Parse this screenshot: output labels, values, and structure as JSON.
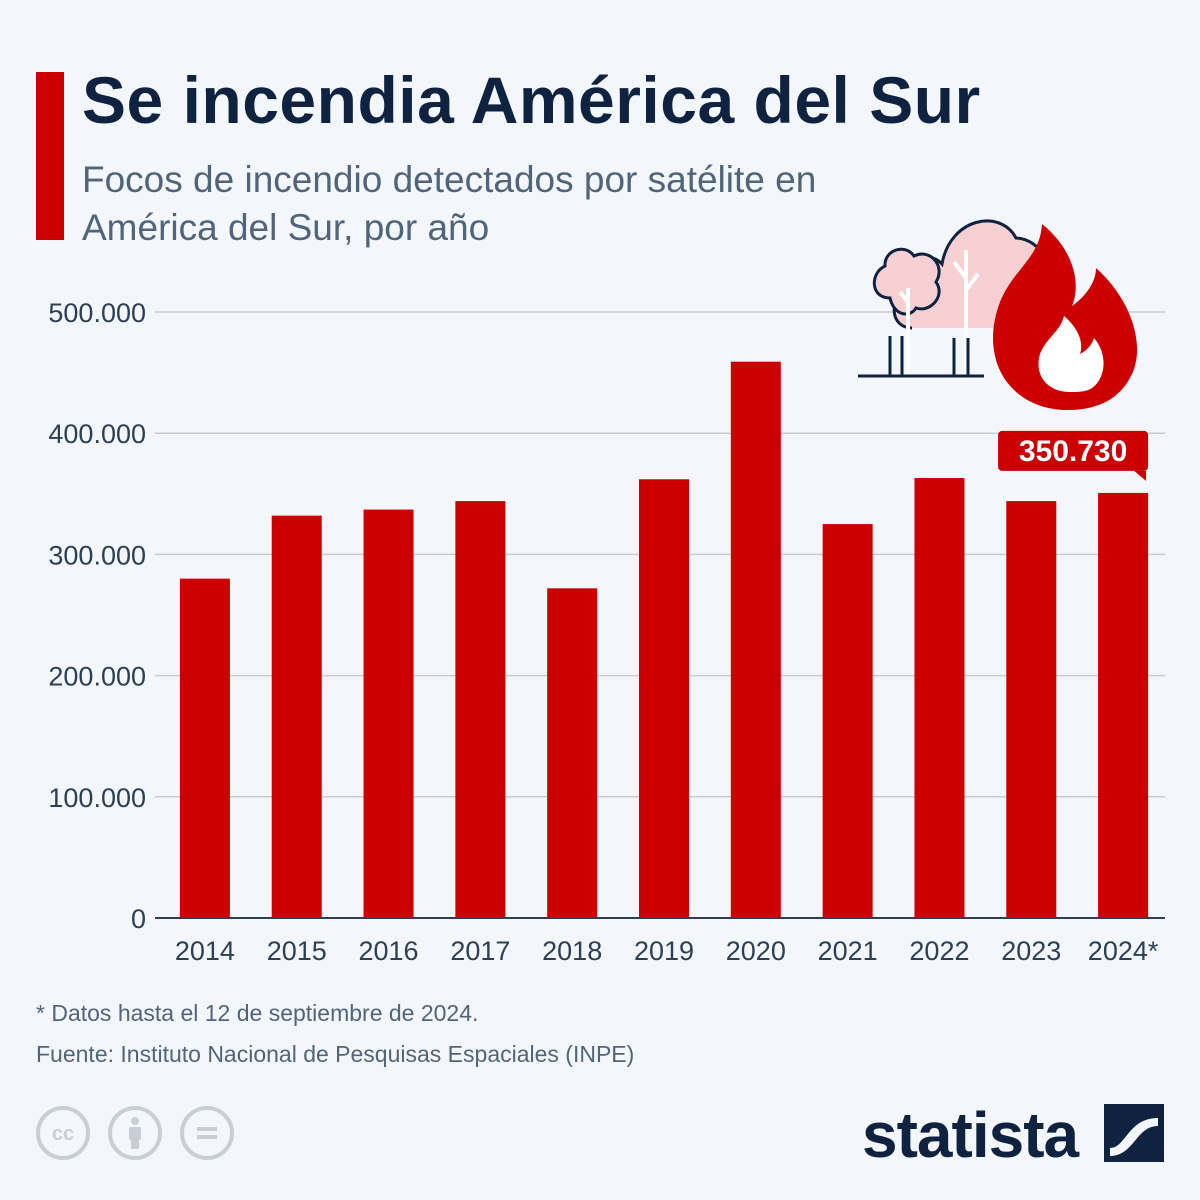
{
  "header": {
    "title": "Se incendia América del Sur",
    "subtitle": "Focos de incendio detectados por satélite en América del Sur, por año"
  },
  "chart_data": {
    "type": "bar",
    "title": "Se incendia América del Sur",
    "subtitle": "Focos de incendio detectados por satélite en América del Sur, por año",
    "categories": [
      "2014",
      "2015",
      "2016",
      "2017",
      "2018",
      "2019",
      "2020",
      "2021",
      "2022",
      "2023",
      "2024*"
    ],
    "values": [
      280000,
      332000,
      337000,
      344000,
      272000,
      362000,
      459000,
      325000,
      363000,
      344000,
      350730
    ],
    "yticks": [
      0,
      100000,
      200000,
      300000,
      400000,
      500000
    ],
    "ytick_labels": [
      "0",
      "100.000",
      "200.000",
      "300.000",
      "400.000",
      "500.000"
    ],
    "ylim": [
      0,
      500000
    ],
    "xlabel": "",
    "ylabel": "",
    "grid": true,
    "highlight": {
      "category": "2024*",
      "label": "350.730"
    },
    "bar_color": "#cc0000",
    "grid_color": "#c5ccd6"
  },
  "footer": {
    "note": "* Datos hasta el 12 de septiembre de 2024.",
    "source": "Fuente: Instituto Nacional de Pesquisas Espaciales (INPE)",
    "brand": "statista",
    "license_icons": [
      "cc-icon",
      "attribution-icon",
      "no-derivatives-icon"
    ]
  },
  "colors": {
    "accent": "#cc0000",
    "title": "#0f2340",
    "text": "#51647a",
    "background": "#f3f7fb"
  }
}
